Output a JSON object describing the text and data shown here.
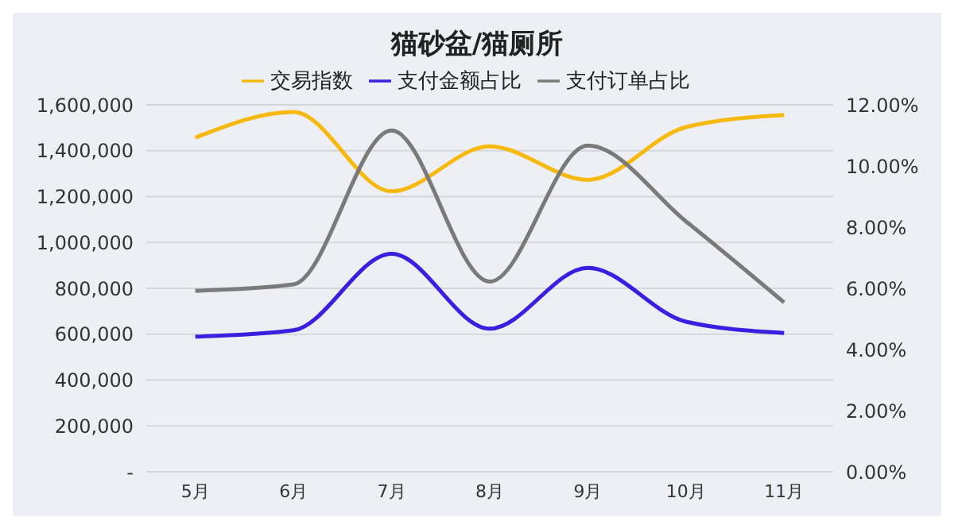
{
  "chart_data": {
    "type": "line",
    "title": "猫砂盆/猫厕所",
    "categories": [
      "5月",
      "6月",
      "7月",
      "8月",
      "9月",
      "10月",
      "11月"
    ],
    "series": [
      {
        "name": "交易指数",
        "color": "#f5b90f",
        "values": [
          1457000,
          1569000,
          1223000,
          1419000,
          1273000,
          1503000,
          1556000
        ]
      },
      {
        "name": "支付金额占比",
        "color": "#3a1fe0",
        "axis": "y2",
        "values": [
          4.42,
          4.63,
          7.13,
          4.68,
          6.67,
          4.91,
          4.54
        ]
      },
      {
        "name": "支付订单占比",
        "color": "#7a7a7a",
        "axis": "y2",
        "values": [
          5.92,
          6.13,
          11.16,
          6.22,
          10.67,
          8.19,
          5.54
        ]
      }
    ],
    "ylim": [
      0,
      1600000
    ],
    "yticks": [
      {
        "value": 0,
        "label": "-"
      },
      {
        "value": 200000,
        "label": "200,000"
      },
      {
        "value": 400000,
        "label": "400,000"
      },
      {
        "value": 600000,
        "label": "600,000"
      },
      {
        "value": 800000,
        "label": "800,000"
      },
      {
        "value": 1000000,
        "label": "1,000,000"
      },
      {
        "value": 1200000,
        "label": "1,200,000"
      },
      {
        "value": 1400000,
        "label": "1,400,000"
      },
      {
        "value": 1600000,
        "label": "1,600,000"
      }
    ],
    "y2lim": [
      0,
      12
    ],
    "y2ticks": [
      {
        "value": 0,
        "label": "0.00%"
      },
      {
        "value": 2,
        "label": "2.00%"
      },
      {
        "value": 4,
        "label": "4.00%"
      },
      {
        "value": 6,
        "label": "6.00%"
      },
      {
        "value": 8,
        "label": "8.00%"
      },
      {
        "value": 10,
        "label": "10.00%"
      },
      {
        "value": 12,
        "label": "12.00%"
      }
    ],
    "grid": "y",
    "legend": "top",
    "marker": "none",
    "line_style": "solid"
  }
}
